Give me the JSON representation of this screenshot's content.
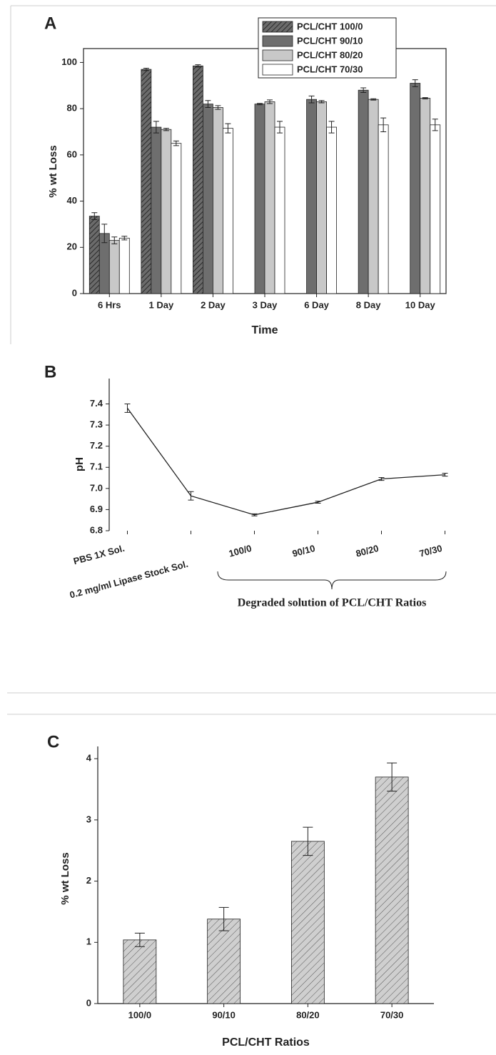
{
  "chart_data": [
    {
      "type": "bar",
      "panel_label": "A",
      "x_label": "Time",
      "y_label": "% wt Loss",
      "categories": [
        "6 Hrs",
        "1 Day",
        "2 Day",
        "3 Day",
        "6 Day",
        "8 Day",
        "10 Day"
      ],
      "series": [
        {
          "name": "PCL/CHT 100/0",
          "color": "#6b6b6b",
          "pattern": "hatch",
          "values": [
            33.5,
            97,
            98.5,
            null,
            null,
            null,
            null
          ],
          "errors": [
            1.5,
            0.5,
            0.5,
            null,
            null,
            null,
            null
          ]
        },
        {
          "name": "PCL/CHT 90/10",
          "color": "#6e6e6e",
          "values": [
            26,
            72,
            82,
            82,
            84,
            88,
            91
          ],
          "errors": [
            4,
            2.5,
            1.5,
            0.3,
            1.5,
            1,
            1.5
          ]
        },
        {
          "name": "PCL/CHT 80/20",
          "color": "#c8c8c8",
          "values": [
            23,
            71,
            80.5,
            83,
            83,
            84,
            84.5
          ],
          "errors": [
            1.5,
            0.5,
            0.8,
            0.8,
            0.5,
            0.3,
            0.3
          ]
        },
        {
          "name": "PCL/CHT 70/30",
          "color": "#ffffff",
          "values": [
            24,
            65,
            71.5,
            72,
            72,
            73,
            73
          ],
          "errors": [
            0.8,
            1,
            2,
            2.5,
            2.5,
            3,
            2.5
          ]
        }
      ],
      "ylim": [
        0,
        106
      ],
      "yticks": [
        0,
        20,
        40,
        60,
        80,
        100
      ],
      "legend": "upper right"
    },
    {
      "type": "line",
      "panel_label": "B",
      "y_label": "pH",
      "categories": [
        "PBS 1X Sol.",
        "0.2 mg/ml Lipase Stock Sol.",
        "100/0",
        "90/10",
        "80/20",
        "70/30"
      ],
      "values": [
        7.38,
        6.965,
        6.875,
        6.935,
        7.045,
        7.065
      ],
      "errors": [
        0.02,
        0.02,
        0.005,
        0.005,
        0.007,
        0.007
      ],
      "color": "#222222",
      "annotation": "Degraded solution of PCL/CHT Ratios",
      "ylim": [
        6.8,
        7.52
      ],
      "yticks": [
        6.8,
        6.9,
        {
          "value": 7,
          "label": "7.0"
        },
        7.1,
        7.2,
        7.3,
        7.4
      ]
    },
    {
      "type": "bar",
      "panel_label": "C",
      "x_label": "PCL/CHT Ratios",
      "y_label": "% wt Loss",
      "categories": [
        "100/0",
        "90/10",
        "80/20",
        "70/30"
      ],
      "series": [
        {
          "color": "#cfcfcf",
          "pattern": "hatch",
          "values": [
            1.04,
            1.38,
            2.65,
            3.7
          ],
          "errors": [
            0.11,
            0.19,
            0.23,
            0.23
          ]
        }
      ],
      "ylim": [
        0,
        4.2
      ],
      "yticks": [
        0,
        1,
        2,
        3,
        4
      ]
    }
  ]
}
